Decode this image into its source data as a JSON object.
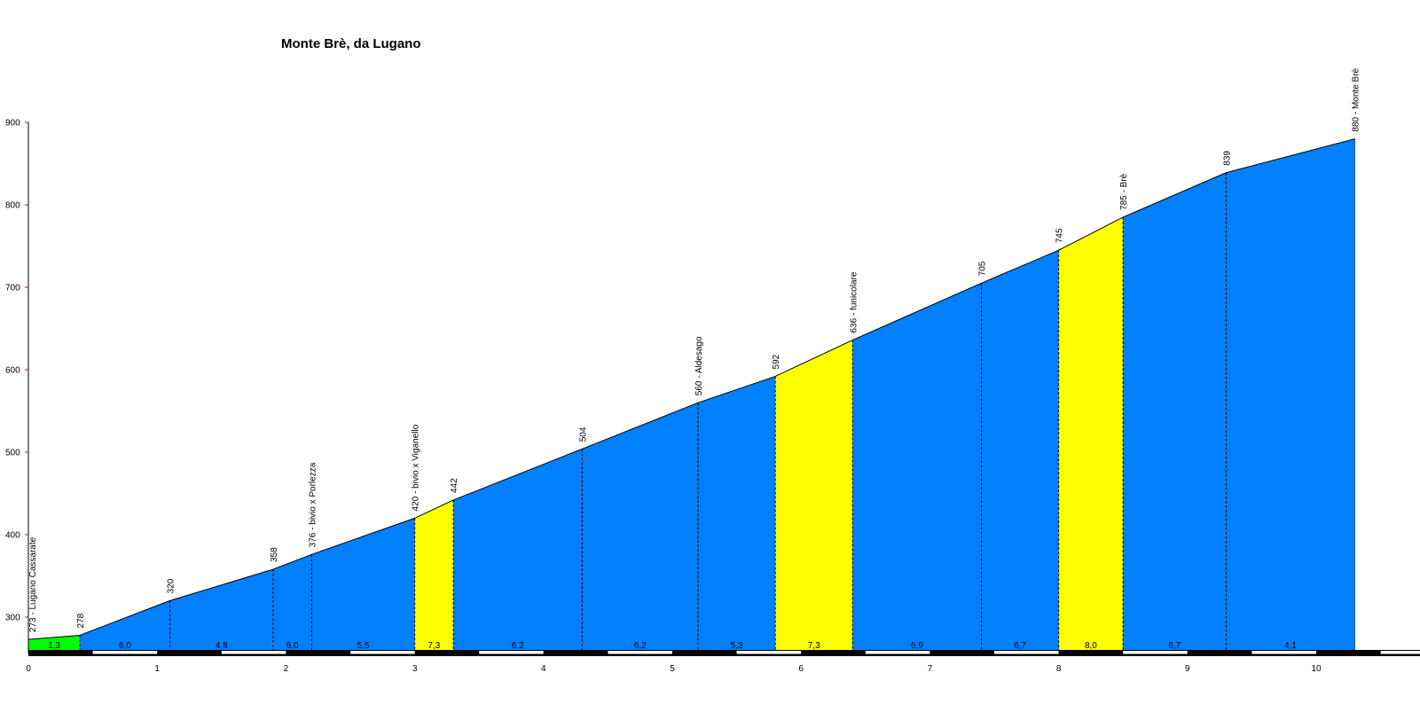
{
  "chart_data": {
    "type": "area",
    "title": "Monte Brè, da Lugano",
    "xlim": [
      0,
      10.3
    ],
    "ylim": [
      255,
      900
    ],
    "y_ticks": [
      300,
      400,
      500,
      600,
      700,
      800,
      900
    ],
    "x_ticks": [
      0,
      1,
      2,
      3,
      4,
      5,
      6,
      7,
      8,
      9,
      10
    ],
    "profile": [
      {
        "km": 0.0,
        "alt": 273,
        "label": "273 - Lugano Cassarate"
      },
      {
        "km": 0.4,
        "alt": 278,
        "label": "278"
      },
      {
        "km": 1.1,
        "alt": 320,
        "label": "320"
      },
      {
        "km": 1.9,
        "alt": 358,
        "label": "358"
      },
      {
        "km": 2.2,
        "alt": 376,
        "label": "376 - bivio x Porlezza"
      },
      {
        "km": 3.0,
        "alt": 420,
        "label": "420 - bivio x Viganello"
      },
      {
        "km": 3.3,
        "alt": 442,
        "label": "442"
      },
      {
        "km": 4.3,
        "alt": 504,
        "label": "504"
      },
      {
        "km": 5.2,
        "alt": 560,
        "label": "560 - Aldesago"
      },
      {
        "km": 5.8,
        "alt": 592,
        "label": "592"
      },
      {
        "km": 6.4,
        "alt": 636,
        "label": "636 - funicolare"
      },
      {
        "km": 7.4,
        "alt": 705,
        "label": "705"
      },
      {
        "km": 8.0,
        "alt": 745,
        "label": "745"
      },
      {
        "km": 8.5,
        "alt": 785,
        "label": "785 - Brè"
      },
      {
        "km": 9.3,
        "alt": 839,
        "label": "839"
      },
      {
        "km": 10.3,
        "alt": 880,
        "label": "880 - Monte Brè"
      }
    ],
    "segments": [
      {
        "grade": "1,3",
        "color": "#00ff00"
      },
      {
        "grade": "6,0",
        "color": "#0080ff"
      },
      {
        "grade": "4,8",
        "color": "#0080ff"
      },
      {
        "grade": "6,0",
        "color": "#0080ff"
      },
      {
        "grade": "5,5",
        "color": "#0080ff"
      },
      {
        "grade": "7,3",
        "color": "#ffff00"
      },
      {
        "grade": "6,2",
        "color": "#0080ff"
      },
      {
        "grade": "6,2",
        "color": "#0080ff"
      },
      {
        "grade": "5,3",
        "color": "#0080ff"
      },
      {
        "grade": "7,3",
        "color": "#ffff00"
      },
      {
        "grade": "6,9",
        "color": "#0080ff"
      },
      {
        "grade": "6,7",
        "color": "#0080ff"
      },
      {
        "grade": "8,0",
        "color": "#ffff00"
      },
      {
        "grade": "6,7",
        "color": "#0080ff"
      },
      {
        "grade": "4,1",
        "color": "#0080ff"
      }
    ]
  }
}
